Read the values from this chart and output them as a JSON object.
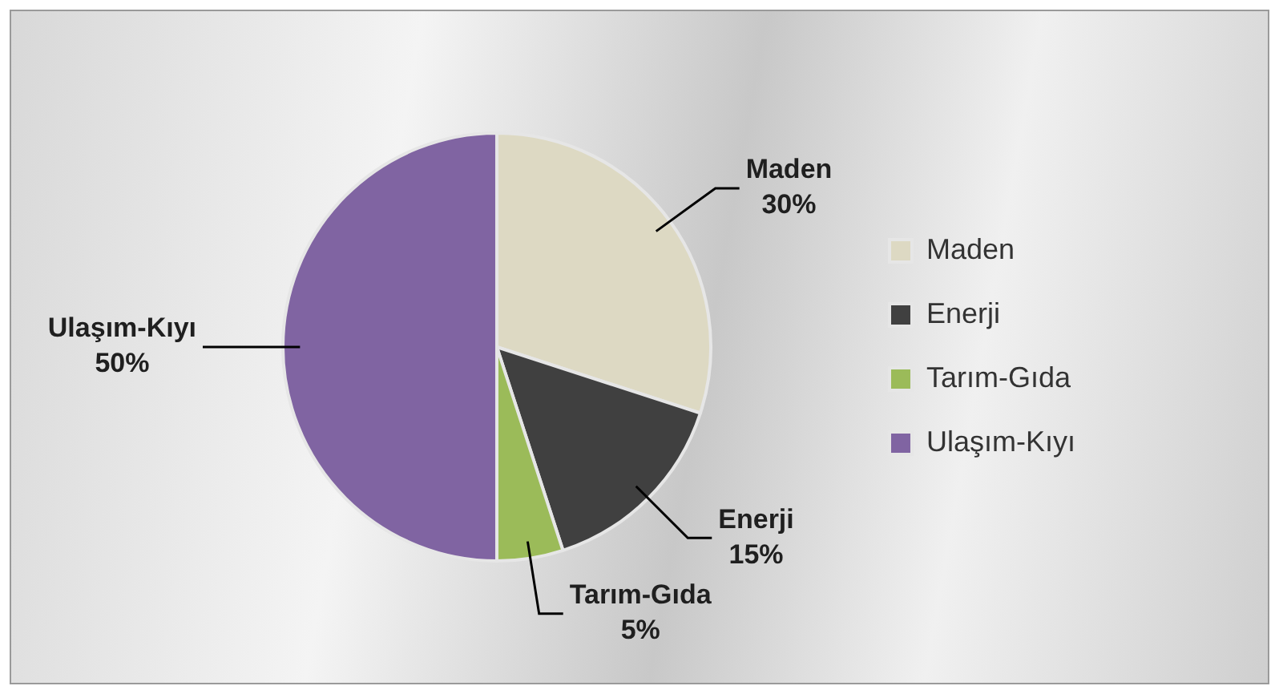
{
  "chart_data": {
    "type": "pie",
    "categories": [
      "Maden",
      "Enerji",
      "Tarım-Gıda",
      "Ulaşım-Kıyı"
    ],
    "values": [
      30,
      15,
      5,
      50
    ],
    "colors": [
      "#ddd9c3",
      "#404040",
      "#9bbb59",
      "#8064a2"
    ],
    "value_labels": [
      "30%",
      "15%",
      "5%",
      "50%"
    ],
    "legend": "right"
  }
}
